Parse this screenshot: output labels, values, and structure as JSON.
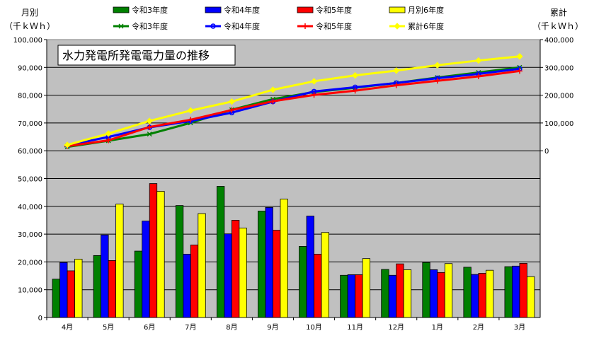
{
  "chart_data": {
    "type": "bar",
    "title": "水力発電所発電電力量の推移",
    "left_axis": {
      "title_line1": "月別",
      "title_line2": "（千ｋＷｈ）",
      "ylim": [
        0,
        100000
      ],
      "ticks": [
        "0",
        "10,000",
        "20,000",
        "30,000",
        "40,000",
        "50,000",
        "60,000",
        "70,000",
        "80,000",
        "90,000",
        "100,000"
      ]
    },
    "right_axis": {
      "title_line1": "累計",
      "title_line2": "（千ｋＷｈ）",
      "ylim": [
        0,
        400000
      ],
      "ticks": [
        "0",
        "100,000",
        "200,000",
        "300,000",
        "400,000"
      ]
    },
    "categories": [
      "4月",
      "5月",
      "6月",
      "7月",
      "8月",
      "9月",
      "10月",
      "11月",
      "12月",
      "1月",
      "2月",
      "3月"
    ],
    "bar_series": [
      {
        "name": "令和3年度",
        "color": "#008000",
        "values": [
          13800,
          22300,
          23900,
          40300,
          47200,
          38300,
          25600,
          15200,
          17300,
          19800,
          18100,
          18300
        ]
      },
      {
        "name": "令和4年度",
        "color": "#0000ff",
        "values": [
          19800,
          29700,
          34700,
          22800,
          30100,
          39600,
          36500,
          15400,
          15200,
          17200,
          15500,
          18500
        ]
      },
      {
        "name": "令和5年度",
        "color": "#ff0000",
        "values": [
          16800,
          20500,
          48200,
          26100,
          35000,
          31400,
          22800,
          15400,
          19300,
          16200,
          15900,
          19500
        ]
      },
      {
        "name": "月別6年度",
        "color": "#ffff00",
        "values": [
          21000,
          40800,
          45400,
          37400,
          32200,
          42600,
          30600,
          21200,
          17200,
          19400,
          17000,
          14700
        ]
      }
    ],
    "line_series": [
      {
        "name": "令和3年度",
        "color": "#008000",
        "marker": "asterisk",
        "values": [
          13800,
          36100,
          60000,
          100300,
          147500,
          185800,
          211400,
          226600,
          243900,
          263700,
          281800,
          300100
        ]
      },
      {
        "name": "令和4年度",
        "color": "#0000ff",
        "marker": "circle",
        "values": [
          19800,
          49500,
          84200,
          107000,
          137100,
          176700,
          213200,
          228600,
          243800,
          261000,
          276500,
          295000
        ]
      },
      {
        "name": "令和5年度",
        "color": "#ff0000",
        "marker": "plus",
        "values": [
          16800,
          37300,
          85500,
          111600,
          146600,
          178000,
          200800,
          216200,
          235500,
          251700,
          267600,
          287100
        ]
      },
      {
        "name": "累計6年度",
        "color": "#ffff00",
        "marker": "diamond",
        "values": [
          21000,
          61800,
          107200,
          144600,
          176800,
          219400,
          250000,
          271200,
          288400,
          307800,
          324800,
          339500
        ]
      }
    ],
    "grid": true,
    "legend_position": "top"
  }
}
